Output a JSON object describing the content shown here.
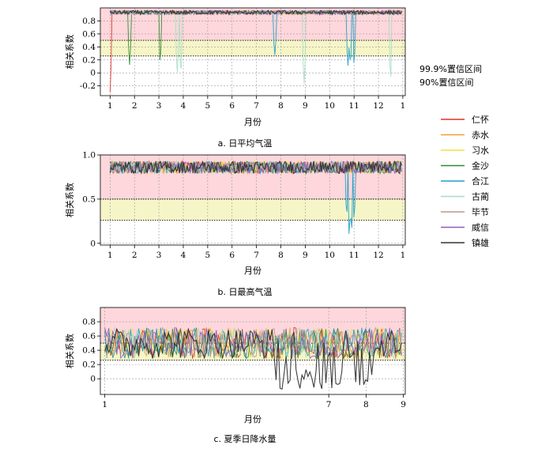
{
  "legend": [
    {
      "name": "仁怀",
      "color": "#e0312b"
    },
    {
      "name": "赤水",
      "color": "#f59a3c"
    },
    {
      "name": "习水",
      "color": "#f2e23a"
    },
    {
      "name": "金沙",
      "color": "#2f8a2f"
    },
    {
      "name": "合江",
      "color": "#1f9dc7"
    },
    {
      "name": "古蔺",
      "color": "#a9dcc3"
    },
    {
      "name": "毕节",
      "color": "#b89a8a"
    },
    {
      "name": "威信",
      "color": "#8b5db8"
    },
    {
      "name": "镇雄",
      "color": "#333333"
    }
  ],
  "confidence_labels": {
    "c999": "99.9%置信区间",
    "c90": "90%置信区间"
  },
  "band_colors": {
    "c999": "#fdd7db",
    "c90": "#f6f5c8"
  },
  "chart_data": [
    {
      "type": "line",
      "caption": "a.  日平均气温",
      "xlabel": "月份",
      "ylabel": "相关系数",
      "xlim": [
        0.6,
        13.1
      ],
      "xticks": [
        1,
        2,
        3,
        4,
        5,
        6,
        7,
        8,
        9,
        10,
        11,
        12,
        13
      ],
      "xticklabels": [
        "1",
        "2",
        "3",
        "4",
        "5",
        "6",
        "7",
        "8",
        "9",
        "10",
        "11",
        "12",
        "1"
      ],
      "ylim": [
        -0.35,
        1.0
      ],
      "yticks": [
        -0.2,
        0,
        0.2,
        0.4,
        0.6,
        0.8
      ],
      "yticklabels": [
        "-0.2",
        "0",
        "0.2",
        "0.4",
        "0.6",
        "0.8"
      ],
      "band_999": [
        0.5,
        1.0
      ],
      "band_90": [
        0.26,
        0.5
      ],
      "thresholds": [
        0.5,
        0.26
      ],
      "grid": true,
      "base": 0.93,
      "base_noise": 0.03,
      "min_value": -0.3,
      "dips": [
        {
          "series": "仁怀",
          "x": 1.0,
          "y": -0.3
        },
        {
          "series": "金沙",
          "x": 1.8,
          "y": 0.12
        },
        {
          "series": "金沙",
          "x": 3.05,
          "y": 0.12
        },
        {
          "series": "古蔺",
          "x": 3.75,
          "y": -0.05
        },
        {
          "series": "古蔺",
          "x": 3.9,
          "y": -0.08
        },
        {
          "series": "合江",
          "x": 7.75,
          "y": 0.25
        },
        {
          "series": "古蔺",
          "x": 8.95,
          "y": -0.2
        },
        {
          "series": "合江",
          "x": 10.75,
          "y": 0.1
        },
        {
          "series": "合江",
          "x": 10.85,
          "y": 0.08
        },
        {
          "series": "合江",
          "x": 11.0,
          "y": 0.1
        },
        {
          "series": "古蔺",
          "x": 12.5,
          "y": -0.15
        }
      ]
    },
    {
      "type": "line",
      "caption": "b.  日最高气温",
      "xlabel": "月份",
      "ylabel": "相关系数",
      "xlim": [
        0.6,
        13.1
      ],
      "xticks": [
        1,
        2,
        3,
        4,
        5,
        6,
        7,
        8,
        9,
        10,
        11,
        12,
        13
      ],
      "xticklabels": [
        "1",
        "2",
        "3",
        "4",
        "5",
        "6",
        "7",
        "8",
        "9",
        "10",
        "11",
        "12",
        "1"
      ],
      "ylim": [
        -0.02,
        1.0
      ],
      "yticks": [
        0,
        0.5,
        1.0
      ],
      "yticklabels": [
        "0",
        "0.5",
        "1.0"
      ],
      "band_999": [
        0.5,
        1.0
      ],
      "band_90": [
        0.26,
        0.5
      ],
      "thresholds": [
        0.5,
        0.26
      ],
      "grid": true,
      "base": 0.86,
      "base_noise": 0.07,
      "min_value": 0.04,
      "dips": [
        {
          "series": "合江",
          "x": 10.7,
          "y": 0.3
        },
        {
          "series": "合江",
          "x": 10.8,
          "y": 0.05
        },
        {
          "series": "合江",
          "x": 10.9,
          "y": 0.1
        },
        {
          "series": "合江",
          "x": 11.0,
          "y": 0.25
        }
      ]
    },
    {
      "type": "line",
      "caption": "c.  夏季日降水量",
      "xlabel": "月份",
      "ylabel": "相关系数",
      "xlim": [
        0.88,
        9.05
      ],
      "xticks": [
        1,
        7,
        8,
        9
      ],
      "xticklabels": [
        "1",
        "7",
        "8",
        "9"
      ],
      "ylim": [
        -0.22,
        1.0
      ],
      "yticks": [
        0,
        0.2,
        0.4,
        0.6,
        0.8
      ],
      "yticklabels": [
        "0",
        "0.2",
        "0.4",
        "0.6",
        "0.8"
      ],
      "band_999": [
        0.5,
        1.0
      ],
      "band_90": [
        0.26,
        0.5
      ],
      "thresholds": [
        0.5,
        0.26
      ],
      "grid": true,
      "base": 0.5,
      "base_noise": 0.22,
      "min_value": -0.15,
      "dips": [
        {
          "series": "镇雄",
          "x": 5.75,
          "y": -0.15
        },
        {
          "series": "镇雄",
          "x": 6.2,
          "y": -0.12
        },
        {
          "series": "镇雄",
          "x": 6.6,
          "y": -0.13
        },
        {
          "series": "镇雄",
          "x": 7.3,
          "y": -0.08
        },
        {
          "series": "镇雄",
          "x": 8.0,
          "y": -0.05
        }
      ]
    }
  ]
}
